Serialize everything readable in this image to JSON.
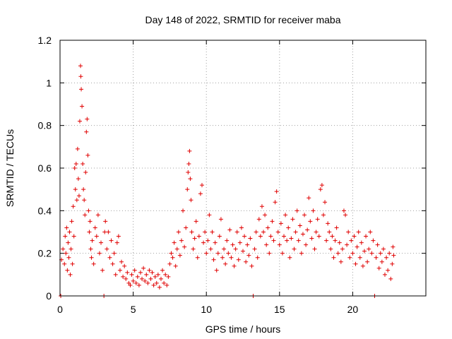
{
  "chart_data": {
    "type": "scatter",
    "title": "Day 148 of 2022, SRMTID for receiver maba",
    "xlabel": "GPS time / hours",
    "ylabel": "SRMTID / TECUs",
    "xlim": [
      0,
      25
    ],
    "ylim": [
      0,
      1.2
    ],
    "xticks": [
      0,
      5,
      10,
      15,
      20
    ],
    "yticks": [
      0,
      0.2,
      0.4,
      0.6,
      0.8,
      1,
      1.2
    ],
    "xtick_labels": [
      "0",
      "5",
      "10",
      "15",
      "20"
    ],
    "ytick_labels": [
      "0",
      "0.2",
      "0.4",
      "0.6",
      "0.8",
      "1",
      "1.2"
    ],
    "grid": true,
    "marker": "+",
    "series": [
      {
        "name": "SRMTID",
        "color": "#e00000",
        "points": [
          [
            0.05,
            0.0
          ],
          [
            0.1,
            0.17
          ],
          [
            0.2,
            0.22
          ],
          [
            0.3,
            0.15
          ],
          [
            0.35,
            0.28
          ],
          [
            0.4,
            0.2
          ],
          [
            0.45,
            0.32
          ],
          [
            0.5,
            0.12
          ],
          [
            0.55,
            0.25
          ],
          [
            0.6,
            0.18
          ],
          [
            0.65,
            0.3
          ],
          [
            0.7,
            0.1
          ],
          [
            0.75,
            0.22
          ],
          [
            0.8,
            0.35
          ],
          [
            0.85,
            0.15
          ],
          [
            0.9,
            0.42
          ],
          [
            0.95,
            0.28
          ],
          [
            1.0,
            0.6
          ],
          [
            1.05,
            0.5
          ],
          [
            1.1,
            0.62
          ],
          [
            1.15,
            0.45
          ],
          [
            1.2,
            0.69
          ],
          [
            1.25,
            0.55
          ],
          [
            1.3,
            0.47
          ],
          [
            1.35,
            0.82
          ],
          [
            1.4,
            1.08
          ],
          [
            1.42,
            1.03
          ],
          [
            1.45,
            0.97
          ],
          [
            1.5,
            0.89
          ],
          [
            1.55,
            0.62
          ],
          [
            1.6,
            0.5
          ],
          [
            1.65,
            0.45
          ],
          [
            1.7,
            0.38
          ],
          [
            1.75,
            0.58
          ],
          [
            1.8,
            0.77
          ],
          [
            1.85,
            0.83
          ],
          [
            1.9,
            0.66
          ],
          [
            1.95,
            0.4
          ],
          [
            2.0,
            0.3
          ],
          [
            2.05,
            0.35
          ],
          [
            2.1,
            0.22
          ],
          [
            2.15,
            0.18
          ],
          [
            2.2,
            0.26
          ],
          [
            2.3,
            0.15
          ],
          [
            2.4,
            0.32
          ],
          [
            2.5,
            0.28
          ],
          [
            2.6,
            0.38
          ],
          [
            2.7,
            0.2
          ],
          [
            2.8,
            0.25
          ],
          [
            2.9,
            0.12
          ],
          [
            3.0,
            0.0
          ],
          [
            3.05,
            0.3
          ],
          [
            3.1,
            0.35
          ],
          [
            3.2,
            0.22
          ],
          [
            3.3,
            0.3
          ],
          [
            3.4,
            0.18
          ],
          [
            3.5,
            0.26
          ],
          [
            3.6,
            0.15
          ],
          [
            3.7,
            0.2
          ],
          [
            3.8,
            0.1
          ],
          [
            3.9,
            0.25
          ],
          [
            4.0,
            0.28
          ],
          [
            4.1,
            0.12
          ],
          [
            4.2,
            0.16
          ],
          [
            4.3,
            0.09
          ],
          [
            4.4,
            0.14
          ],
          [
            4.5,
            0.08
          ],
          [
            4.6,
            0.11
          ],
          [
            4.7,
            0.06
          ],
          [
            4.8,
            0.05
          ],
          [
            4.9,
            0.1
          ],
          [
            5.0,
            0.07
          ],
          [
            5.1,
            0.12
          ],
          [
            5.2,
            0.06
          ],
          [
            5.3,
            0.09
          ],
          [
            5.4,
            0.05
          ],
          [
            5.5,
            0.11
          ],
          [
            5.6,
            0.08
          ],
          [
            5.7,
            0.13
          ],
          [
            5.8,
            0.07
          ],
          [
            5.9,
            0.1
          ],
          [
            6.0,
            0.06
          ],
          [
            6.1,
            0.12
          ],
          [
            6.2,
            0.08
          ],
          [
            6.3,
            0.11
          ],
          [
            6.4,
            0.05
          ],
          [
            6.5,
            0.09
          ],
          [
            6.6,
            0.06
          ],
          [
            6.7,
            0.1
          ],
          [
            6.8,
            0.04
          ],
          [
            6.9,
            0.08
          ],
          [
            7.0,
            0.12
          ],
          [
            7.1,
            0.06
          ],
          [
            7.2,
            0.1
          ],
          [
            7.3,
            0.05
          ],
          [
            7.4,
            0.09
          ],
          [
            7.5,
            0.15
          ],
          [
            7.6,
            0.2
          ],
          [
            7.7,
            0.18
          ],
          [
            7.8,
            0.25
          ],
          [
            7.9,
            0.14
          ],
          [
            8.0,
            0.22
          ],
          [
            8.1,
            0.3
          ],
          [
            8.2,
            0.19
          ],
          [
            8.3,
            0.26
          ],
          [
            8.4,
            0.4
          ],
          [
            8.5,
            0.23
          ],
          [
            8.6,
            0.32
          ],
          [
            8.7,
            0.5
          ],
          [
            8.75,
            0.58
          ],
          [
            8.8,
            0.62
          ],
          [
            8.85,
            0.68
          ],
          [
            8.9,
            0.55
          ],
          [
            8.95,
            0.45
          ],
          [
            9.0,
            0.3
          ],
          [
            9.1,
            0.22
          ],
          [
            9.2,
            0.27
          ],
          [
            9.3,
            0.35
          ],
          [
            9.4,
            0.18
          ],
          [
            9.5,
            0.28
          ],
          [
            9.6,
            0.48
          ],
          [
            9.7,
            0.52
          ],
          [
            9.8,
            0.25
          ],
          [
            9.9,
            0.3
          ],
          [
            10.0,
            0.2
          ],
          [
            10.1,
            0.26
          ],
          [
            10.2,
            0.38
          ],
          [
            10.3,
            0.22
          ],
          [
            10.4,
            0.3
          ],
          [
            10.5,
            0.17
          ],
          [
            10.6,
            0.25
          ],
          [
            10.7,
            0.12
          ],
          [
            10.8,
            0.2
          ],
          [
            10.9,
            0.28
          ],
          [
            11.0,
            0.36
          ],
          [
            11.1,
            0.18
          ],
          [
            11.2,
            0.22
          ],
          [
            11.3,
            0.15
          ],
          [
            11.4,
            0.26
          ],
          [
            11.5,
            0.2
          ],
          [
            11.6,
            0.31
          ],
          [
            11.7,
            0.18
          ],
          [
            11.8,
            0.24
          ],
          [
            11.9,
            0.14
          ],
          [
            12.0,
            0.22
          ],
          [
            12.1,
            0.3
          ],
          [
            12.2,
            0.17
          ],
          [
            12.3,
            0.25
          ],
          [
            12.4,
            0.32
          ],
          [
            12.5,
            0.21
          ],
          [
            12.6,
            0.28
          ],
          [
            12.7,
            0.16
          ],
          [
            12.8,
            0.24
          ],
          [
            12.9,
            0.19
          ],
          [
            13.0,
            0.27
          ],
          [
            13.1,
            0.14
          ],
          [
            13.2,
            0.0
          ],
          [
            13.3,
            0.22
          ],
          [
            13.4,
            0.3
          ],
          [
            13.5,
            0.18
          ],
          [
            13.6,
            0.36
          ],
          [
            13.7,
            0.28
          ],
          [
            13.8,
            0.42
          ],
          [
            13.9,
            0.3
          ],
          [
            14.0,
            0.38
          ],
          [
            14.1,
            0.24
          ],
          [
            14.2,
            0.32
          ],
          [
            14.3,
            0.2
          ],
          [
            14.4,
            0.28
          ],
          [
            14.5,
            0.35
          ],
          [
            14.6,
            0.26
          ],
          [
            14.7,
            0.44
          ],
          [
            14.8,
            0.49
          ],
          [
            14.9,
            0.3
          ],
          [
            15.0,
            0.24
          ],
          [
            15.1,
            0.34
          ],
          [
            15.2,
            0.2
          ],
          [
            15.3,
            0.28
          ],
          [
            15.4,
            0.38
          ],
          [
            15.5,
            0.26
          ],
          [
            15.6,
            0.32
          ],
          [
            15.7,
            0.18
          ],
          [
            15.8,
            0.27
          ],
          [
            15.9,
            0.36
          ],
          [
            16.0,
            0.22
          ],
          [
            16.1,
            0.3
          ],
          [
            16.2,
            0.4
          ],
          [
            16.3,
            0.26
          ],
          [
            16.4,
            0.33
          ],
          [
            16.5,
            0.2
          ],
          [
            16.6,
            0.29
          ],
          [
            16.7,
            0.38
          ],
          [
            16.8,
            0.24
          ],
          [
            16.9,
            0.31
          ],
          [
            17.0,
            0.46
          ],
          [
            17.1,
            0.35
          ],
          [
            17.2,
            0.27
          ],
          [
            17.3,
            0.4
          ],
          [
            17.4,
            0.22
          ],
          [
            17.5,
            0.3
          ],
          [
            17.6,
            0.36
          ],
          [
            17.7,
            0.28
          ],
          [
            17.8,
            0.5
          ],
          [
            17.9,
            0.52
          ],
          [
            18.0,
            0.38
          ],
          [
            18.1,
            0.44
          ],
          [
            18.2,
            0.26
          ],
          [
            18.3,
            0.34
          ],
          [
            18.4,
            0.3
          ],
          [
            18.5,
            0.22
          ],
          [
            18.6,
            0.28
          ],
          [
            18.7,
            0.18
          ],
          [
            18.8,
            0.26
          ],
          [
            18.9,
            0.32
          ],
          [
            19.0,
            0.2
          ],
          [
            19.1,
            0.25
          ],
          [
            19.2,
            0.16
          ],
          [
            19.3,
            0.22
          ],
          [
            19.4,
            0.4
          ],
          [
            19.5,
            0.38
          ],
          [
            19.6,
            0.24
          ],
          [
            19.7,
            0.3
          ],
          [
            19.8,
            0.18
          ],
          [
            19.9,
            0.26
          ],
          [
            20.0,
            0.2
          ],
          [
            20.1,
            0.28
          ],
          [
            20.2,
            0.15
          ],
          [
            20.3,
            0.23
          ],
          [
            20.4,
            0.3
          ],
          [
            20.5,
            0.18
          ],
          [
            20.6,
            0.25
          ],
          [
            20.7,
            0.14
          ],
          [
            20.8,
            0.21
          ],
          [
            20.9,
            0.28
          ],
          [
            21.0,
            0.16
          ],
          [
            21.1,
            0.22
          ],
          [
            21.2,
            0.3
          ],
          [
            21.3,
            0.2
          ],
          [
            21.4,
            0.26
          ],
          [
            21.5,
            0.0
          ],
          [
            21.6,
            0.18
          ],
          [
            21.7,
            0.24
          ],
          [
            21.8,
            0.13
          ],
          [
            21.9,
            0.2
          ],
          [
            22.0,
            0.16
          ],
          [
            22.1,
            0.22
          ],
          [
            22.2,
            0.1
          ],
          [
            22.3,
            0.18
          ],
          [
            22.4,
            0.12
          ],
          [
            22.5,
            0.2
          ],
          [
            22.6,
            0.08
          ],
          [
            22.7,
            0.15
          ],
          [
            22.75,
            0.23
          ],
          [
            22.8,
            0.19
          ]
        ]
      }
    ]
  }
}
